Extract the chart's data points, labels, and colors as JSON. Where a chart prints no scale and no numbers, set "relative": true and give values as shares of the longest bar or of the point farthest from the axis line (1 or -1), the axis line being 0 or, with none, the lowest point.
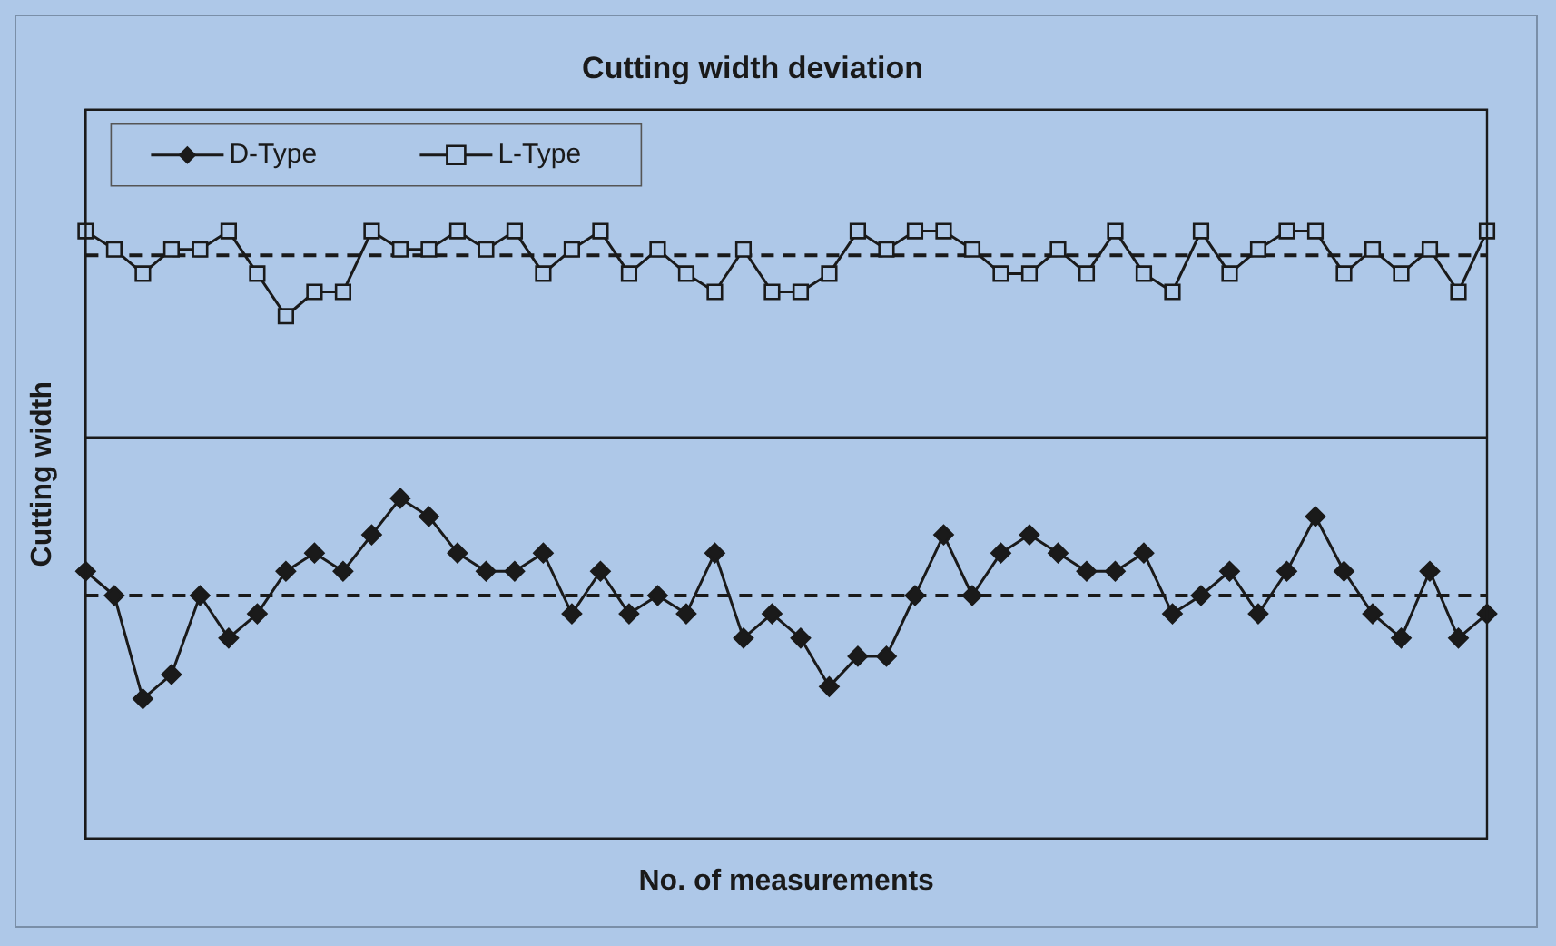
{
  "chart_data": {
    "type": "line",
    "title": "Cutting width deviation",
    "xlabel": "No. of measurements",
    "ylabel": "Cutting width",
    "relative": true,
    "legend": "top left",
    "grid": false,
    "line_style": "solid",
    "categories": [
      null,
      null,
      null,
      null,
      null,
      null,
      null,
      null,
      null,
      null,
      null,
      null,
      null,
      null,
      null,
      null,
      null,
      null,
      null,
      null,
      null,
      null,
      null,
      null,
      null,
      null,
      null,
      null,
      null,
      null,
      null,
      null,
      null,
      null,
      null,
      null,
      null,
      null,
      null,
      null,
      null,
      null,
      null,
      null,
      null,
      null,
      null,
      null,
      null,
      null
    ],
    "series": [
      {
        "name": "D-Type",
        "color": "#1a1a1a",
        "marker": "diamond",
        "values": [
          0.44,
          0.4,
          0.23,
          0.27,
          0.4,
          0.33,
          0.37,
          0.44,
          0.47,
          0.44,
          0.5,
          0.56,
          0.53,
          0.47,
          0.44,
          0.44,
          0.47,
          0.37,
          0.44,
          0.37,
          0.4,
          0.37,
          0.47,
          0.33,
          0.37,
          0.33,
          0.25,
          0.3,
          0.3,
          0.4,
          0.5,
          0.4,
          0.47,
          0.5,
          0.47,
          0.44,
          0.44,
          0.47,
          0.37,
          0.4,
          0.44,
          0.37,
          0.44,
          0.53,
          0.44,
          0.37,
          0.33,
          0.44,
          0.33,
          0.37
        ]
      },
      {
        "name": "L-Type",
        "color": "#1a1a1a",
        "marker": "square",
        "values": [
          1.0,
          0.97,
          0.93,
          0.97,
          0.97,
          1.0,
          0.93,
          0.86,
          0.9,
          0.9,
          1.0,
          0.97,
          0.97,
          1.0,
          0.97,
          1.0,
          0.93,
          0.97,
          1.0,
          0.93,
          0.97,
          0.93,
          0.9,
          0.97,
          0.9,
          0.9,
          0.93,
          1.0,
          0.97,
          1.0,
          1.0,
          0.97,
          0.93,
          0.93,
          0.97,
          0.93,
          1.0,
          0.93,
          0.9,
          1.0,
          0.93,
          0.97,
          1.0,
          1.0,
          0.93,
          0.97,
          0.93,
          0.97,
          0.9,
          1.0
        ]
      }
    ],
    "ref_lines": [
      {
        "axis": "y",
        "value": 0.4,
        "color": "#1a1a1a",
        "line_style": "dashed"
      },
      {
        "axis": "y",
        "value": 0.96,
        "color": "#1a1a1a",
        "line_style": "dashed"
      },
      {
        "axis": "y",
        "value": 0.66,
        "color": "#1a1a1a",
        "line_style": "solid"
      }
    ]
  }
}
